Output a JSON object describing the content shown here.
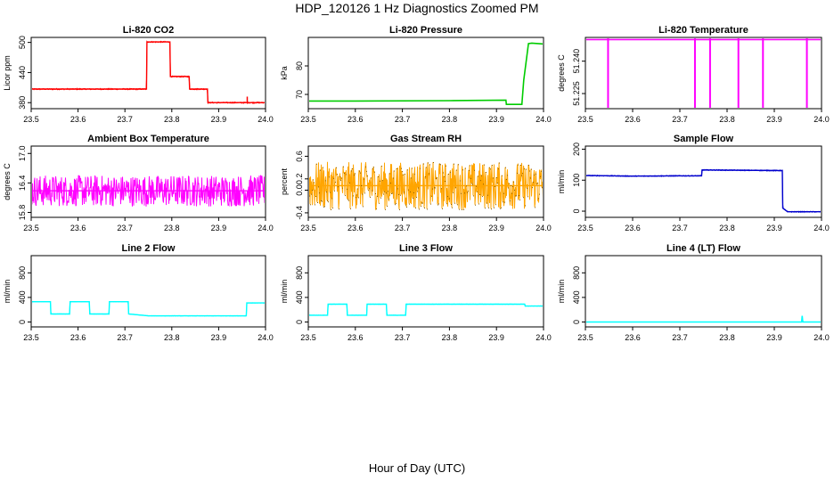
{
  "title": "HDP_120126  1 Hz Diagnostics Zoomed PM",
  "xlabel": "Hour of Day (UTC)",
  "chart_data": [
    {
      "type": "line",
      "title": "Li-820 CO2",
      "ylabel": "Licor ppm",
      "color": "#ff0000",
      "xlim": [
        23.5,
        24.0
      ],
      "ylim": [
        368,
        510
      ],
      "xticks": [
        23.5,
        23.6,
        23.7,
        23.8,
        23.9,
        24.0
      ],
      "xtick_labels": [
        "23.5",
        "23.6",
        "23.7",
        "23.8",
        "23.9",
        "24.0"
      ],
      "yticks": [
        380,
        440,
        500
      ],
      "ytick_labels": [
        "380",
        "440",
        "500"
      ],
      "noise": 1.2,
      "series": [
        {
          "x": [
            23.5,
            23.746,
            23.747,
            23.796,
            23.797,
            23.837,
            23.838,
            23.876,
            23.877,
            24.0
          ],
          "y": [
            407,
            407,
            501,
            501,
            432,
            432,
            407,
            407,
            380,
            380
          ]
        }
      ],
      "spikes": [
        {
          "x": 23.961,
          "y": 392
        }
      ]
    },
    {
      "type": "line",
      "title": "Li-820 Pressure",
      "ylabel": "kPa",
      "color": "#00cc00",
      "xlim": [
        23.5,
        24.0
      ],
      "ylim": [
        65,
        90
      ],
      "xticks": [
        23.5,
        23.6,
        23.7,
        23.8,
        23.9,
        24.0
      ],
      "xtick_labels": [
        "23.5",
        "23.6",
        "23.7",
        "23.8",
        "23.9",
        "24.0"
      ],
      "yticks": [
        70,
        80
      ],
      "ytick_labels": [
        "70",
        "80"
      ],
      "noise": 0.05,
      "series": [
        {
          "x": [
            23.5,
            23.6,
            23.8,
            23.92,
            23.921,
            23.954,
            23.958,
            23.968,
            23.975,
            24.0
          ],
          "y": [
            67.7,
            67.7,
            67.8,
            68.0,
            66.5,
            66.5,
            75,
            87.8,
            88.0,
            87.7
          ]
        }
      ]
    },
    {
      "type": "line",
      "title": "Li-820 Temperature",
      "ylabel": "degrees C",
      "color": "#ff00ff",
      "xlim": [
        23.5,
        24.0
      ],
      "ylim": [
        51.218,
        51.251
      ],
      "xticks": [
        23.5,
        23.6,
        23.7,
        23.8,
        23.9,
        24.0
      ],
      "xtick_labels": [
        "23.5",
        "23.6",
        "23.7",
        "23.8",
        "23.9",
        "24.0"
      ],
      "yticks": [
        51.225,
        51.24
      ],
      "ytick_labels": [
        "51.225",
        "51.240"
      ],
      "noise": 0,
      "series": [
        {
          "x": [
            23.5,
            24.0
          ],
          "y": [
            51.25,
            51.25
          ]
        }
      ],
      "drops": [
        23.548,
        23.732,
        23.764,
        23.824,
        23.876,
        23.969
      ],
      "drop_to": 51.218
    },
    {
      "type": "line",
      "title": "Ambient Box Temperature",
      "ylabel": "degrees C",
      "color": "#ff00ff",
      "xlim": [
        23.5,
        24.0
      ],
      "ylim": [
        15.7,
        17.15
      ],
      "xticks": [
        23.5,
        23.6,
        23.7,
        23.8,
        23.9,
        24.0
      ],
      "xtick_labels": [
        "23.5",
        "23.6",
        "23.7",
        "23.8",
        "23.9",
        "24.0"
      ],
      "yticks": [
        15.8,
        16.4,
        17.0
      ],
      "ytick_labels": [
        "15.8",
        "16.4",
        "17.0"
      ],
      "noise": 0.32,
      "series": [
        {
          "x": [
            23.5,
            24.0
          ],
          "y": [
            16.24,
            16.24
          ]
        }
      ]
    },
    {
      "type": "line",
      "title": "Gas Stream RH",
      "ylabel": "percent",
      "color": "#ffa500",
      "points_color": "#8b5a00",
      "xlim": [
        23.5,
        24.0
      ],
      "ylim": [
        -0.48,
        0.78
      ],
      "xticks": [
        23.5,
        23.6,
        23.7,
        23.8,
        23.9,
        24.0
      ],
      "xtick_labels": [
        "23.5",
        "23.6",
        "23.7",
        "23.8",
        "23.9",
        "24.0"
      ],
      "yticks": [
        -0.4,
        0.0,
        0.2,
        0.6
      ],
      "ytick_labels": [
        "-0.4",
        "0.0",
        "0.2",
        "0.6"
      ],
      "noise": 0.42,
      "series": [
        {
          "x": [
            23.5,
            24.0
          ],
          "y": [
            0.08,
            0.08
          ]
        }
      ]
    },
    {
      "type": "line",
      "title": "Sample Flow",
      "ylabel": "ml/min",
      "color": "#0000cd",
      "xlim": [
        23.5,
        24.0
      ],
      "ylim": [
        -20,
        210
      ],
      "xticks": [
        23.5,
        23.6,
        23.7,
        23.8,
        23.9,
        24.0
      ],
      "xtick_labels": [
        "23.5",
        "23.6",
        "23.7",
        "23.8",
        "23.9",
        "24.0"
      ],
      "yticks": [
        0,
        100,
        200
      ],
      "ytick_labels": [
        "0",
        "100",
        "200"
      ],
      "noise": 1.5,
      "series": [
        {
          "x": [
            23.5,
            23.6,
            23.7,
            23.746,
            23.747,
            23.917,
            23.918,
            23.928,
            24.0
          ],
          "y": [
            115,
            113,
            114,
            114,
            133,
            131,
            10,
            -2,
            -2
          ]
        }
      ]
    },
    {
      "type": "line",
      "title": "Line 2 Flow",
      "ylabel": "ml/min",
      "color": "#00ffff",
      "xlim": [
        23.5,
        24.0
      ],
      "ylim": [
        -80,
        1080
      ],
      "xticks": [
        23.5,
        23.6,
        23.7,
        23.8,
        23.9,
        24.0
      ],
      "xtick_labels": [
        "23.5",
        "23.6",
        "23.7",
        "23.8",
        "23.9",
        "24.0"
      ],
      "yticks": [
        0,
        400,
        800
      ],
      "ytick_labels": [
        "0",
        "400",
        "800"
      ],
      "noise": 3,
      "series": [
        {
          "x": [
            23.5,
            23.501,
            23.541,
            23.542,
            23.582,
            23.583,
            23.624,
            23.625,
            23.666,
            23.667,
            23.707,
            23.708,
            23.75,
            23.959,
            23.96,
            24.0
          ],
          "y": [
            180,
            330,
            330,
            130,
            130,
            330,
            330,
            130,
            130,
            330,
            330,
            130,
            100,
            100,
            310,
            310
          ]
        }
      ]
    },
    {
      "type": "line",
      "title": "Line 3 Flow",
      "ylabel": "ml/min",
      "color": "#00ffff",
      "xlim": [
        23.5,
        24.0
      ],
      "ylim": [
        -80,
        1080
      ],
      "xticks": [
        23.5,
        23.6,
        23.7,
        23.8,
        23.9,
        24.0
      ],
      "xtick_labels": [
        "23.5",
        "23.6",
        "23.7",
        "23.8",
        "23.9",
        "24.0"
      ],
      "yticks": [
        0,
        400,
        800
      ],
      "ytick_labels": [
        "0",
        "400",
        "800"
      ],
      "noise": 3,
      "series": [
        {
          "x": [
            23.5,
            23.501,
            23.502,
            23.541,
            23.542,
            23.582,
            23.583,
            23.624,
            23.625,
            23.666,
            23.667,
            23.707,
            23.708,
            23.96,
            23.961,
            24.0
          ],
          "y": [
            290,
            110,
            110,
            110,
            290,
            290,
            110,
            110,
            290,
            290,
            110,
            110,
            290,
            290,
            260,
            260
          ]
        }
      ]
    },
    {
      "type": "line",
      "title": "Line 4 (LT) Flow",
      "ylabel": "ml/min",
      "color": "#00ffff",
      "xlim": [
        23.5,
        24.0
      ],
      "ylim": [
        -80,
        1080
      ],
      "xticks": [
        23.5,
        23.6,
        23.7,
        23.8,
        23.9,
        24.0
      ],
      "xtick_labels": [
        "23.5",
        "23.6",
        "23.7",
        "23.8",
        "23.9",
        "24.0"
      ],
      "yticks": [
        0,
        400,
        800
      ],
      "ytick_labels": [
        "0",
        "400",
        "800"
      ],
      "noise": 0,
      "series": [
        {
          "x": [
            23.5,
            23.958,
            23.959,
            23.96,
            23.961,
            24.0
          ],
          "y": [
            0,
            0,
            100,
            20,
            0,
            0
          ]
        }
      ]
    }
  ]
}
